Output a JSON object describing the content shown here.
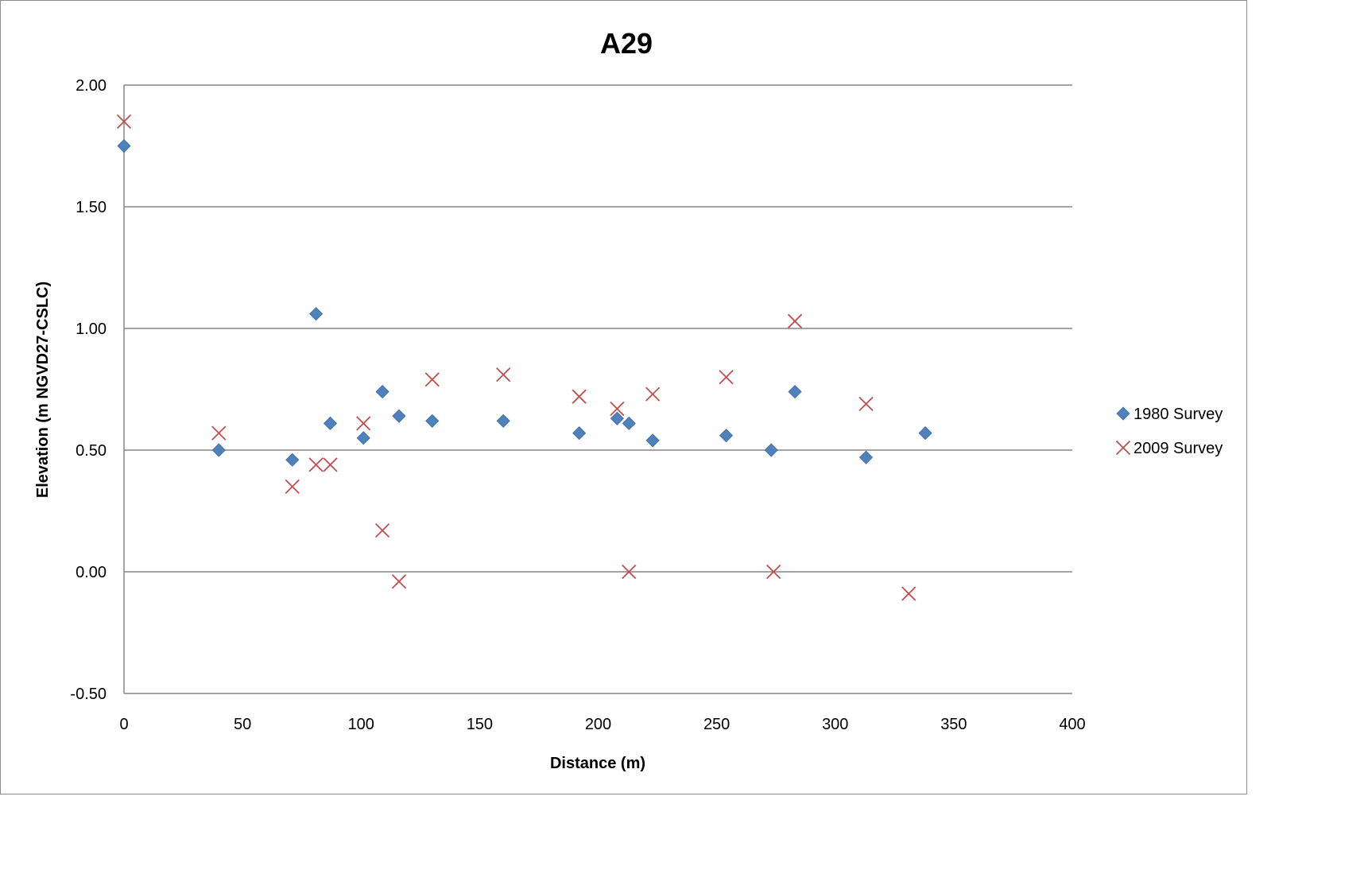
{
  "chart_data": {
    "type": "scatter",
    "title": "A29",
    "xlabel": "Distance (m)",
    "ylabel": "Elevation (m NGVD27-CSLC)",
    "xlim": [
      0,
      400
    ],
    "ylim": [
      -0.5,
      2.0
    ],
    "x_ticks": [
      "0",
      "50",
      "100",
      "150",
      "200",
      "250",
      "300",
      "350",
      "400"
    ],
    "y_ticks": [
      "2.00",
      "1.50",
      "1.00",
      "0.50",
      "0.00",
      "-0.50"
    ],
    "grid": "horizontal",
    "legend_position": "right",
    "series": [
      {
        "name": "1980 Survey",
        "marker": "diamond",
        "color": "#4F81BD",
        "points": [
          [
            0,
            1.75
          ],
          [
            40,
            0.5
          ],
          [
            71,
            0.46
          ],
          [
            81,
            1.06
          ],
          [
            87,
            0.61
          ],
          [
            101,
            0.55
          ],
          [
            109,
            0.74
          ],
          [
            116,
            0.64
          ],
          [
            130,
            0.62
          ],
          [
            160,
            0.62
          ],
          [
            192,
            0.57
          ],
          [
            208,
            0.63
          ],
          [
            213,
            0.61
          ],
          [
            223,
            0.54
          ],
          [
            254,
            0.56
          ],
          [
            273,
            0.5
          ],
          [
            283,
            0.74
          ],
          [
            313,
            0.47
          ],
          [
            338,
            0.57
          ]
        ]
      },
      {
        "name": "2009 Survey",
        "marker": "x",
        "color": "#C0504D",
        "points": [
          [
            0,
            1.85
          ],
          [
            40,
            0.57
          ],
          [
            71,
            0.35
          ],
          [
            81,
            0.44
          ],
          [
            87,
            0.44
          ],
          [
            101,
            0.61
          ],
          [
            109,
            0.17
          ],
          [
            116,
            -0.04
          ],
          [
            130,
            0.79
          ],
          [
            160,
            0.81
          ],
          [
            192,
            0.72
          ],
          [
            208,
            0.67
          ],
          [
            213,
            0.0
          ],
          [
            223,
            0.73
          ],
          [
            254,
            0.8
          ],
          [
            274,
            0.0
          ],
          [
            283,
            1.03
          ],
          [
            313,
            0.69
          ],
          [
            331,
            -0.09
          ]
        ]
      }
    ]
  }
}
